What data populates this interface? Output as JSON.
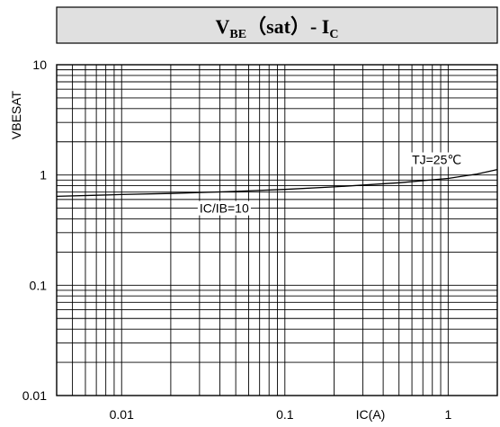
{
  "chart_data": {
    "type": "line",
    "title": {
      "main": "V",
      "sub": "BE",
      "mid": "（sat）- I",
      "sub2": "C"
    },
    "xlabel": "IC(A)",
    "ylabel": "VBESAT",
    "x_scale": "log",
    "y_scale": "log",
    "xlim": [
      0.004,
      2
    ],
    "ylim": [
      0.01,
      10
    ],
    "grid": true,
    "x_ticks": [
      {
        "value": 0.01,
        "label": "0.01"
      },
      {
        "value": 0.1,
        "label": "0.1"
      },
      {
        "value": 1,
        "label": "1"
      }
    ],
    "y_ticks": [
      {
        "value": 10,
        "label": "10"
      },
      {
        "value": 1,
        "label": "1"
      },
      {
        "value": 0.1,
        "label": "0.1"
      },
      {
        "value": 0.01,
        "label": "0.01"
      }
    ],
    "series": [
      {
        "x": [
          0.004,
          0.007,
          0.01,
          0.02,
          0.05,
          0.1,
          0.2,
          0.5,
          1,
          1.5,
          2
        ],
        "y": [
          0.64,
          0.655,
          0.665,
          0.68,
          0.71,
          0.74,
          0.78,
          0.85,
          0.93,
          1.02,
          1.12
        ]
      }
    ],
    "annotations": [
      {
        "text": "TJ=25℃",
        "x": 0.6,
        "y": 1.38
      },
      {
        "text": "IC/IB=10",
        "x": 0.03,
        "y": 0.5
      }
    ]
  }
}
